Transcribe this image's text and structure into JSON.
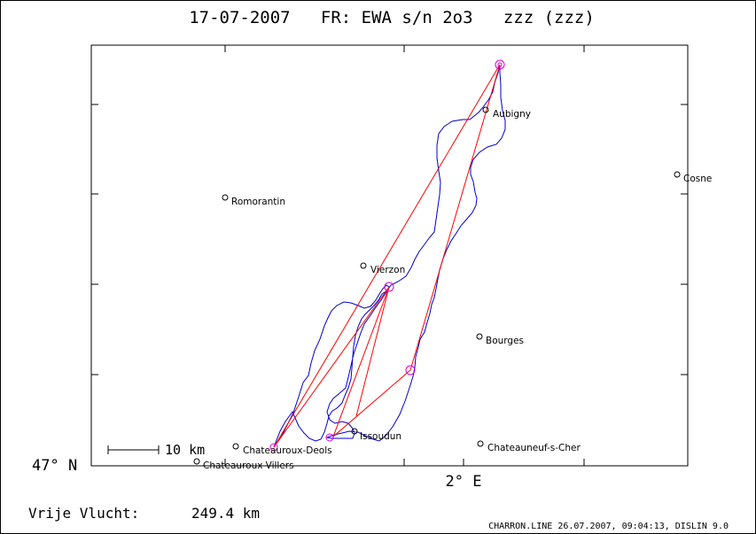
{
  "title": "17-07-2007   FR: EWA s/n 2o3   zzz (zzz)",
  "axes": {
    "lat_label": "47° N",
    "lon_label": "2° E"
  },
  "scale_bar": {
    "label": "10 km"
  },
  "cities": [
    {
      "name": "Aubigny"
    },
    {
      "name": "Cosne"
    },
    {
      "name": "Romorantin"
    },
    {
      "name": "Vierzon"
    },
    {
      "name": "Bourges"
    },
    {
      "name": "Issoudun"
    },
    {
      "name": "Chateauroux-Deols"
    },
    {
      "name": "Chateauroux-Villers"
    },
    {
      "name": "Chateauneuf-s-Cher"
    }
  ],
  "summary": {
    "label": "Vrije Vlucht:",
    "distance": "249.4 km"
  },
  "footer": "CHARRON.LINE 26.07.2007, 09:04:13, DISLIN 9.0",
  "colors": {
    "track": "#0000cc",
    "task_lines": "#ff0000",
    "turnpoints": "#dd00dd"
  }
}
